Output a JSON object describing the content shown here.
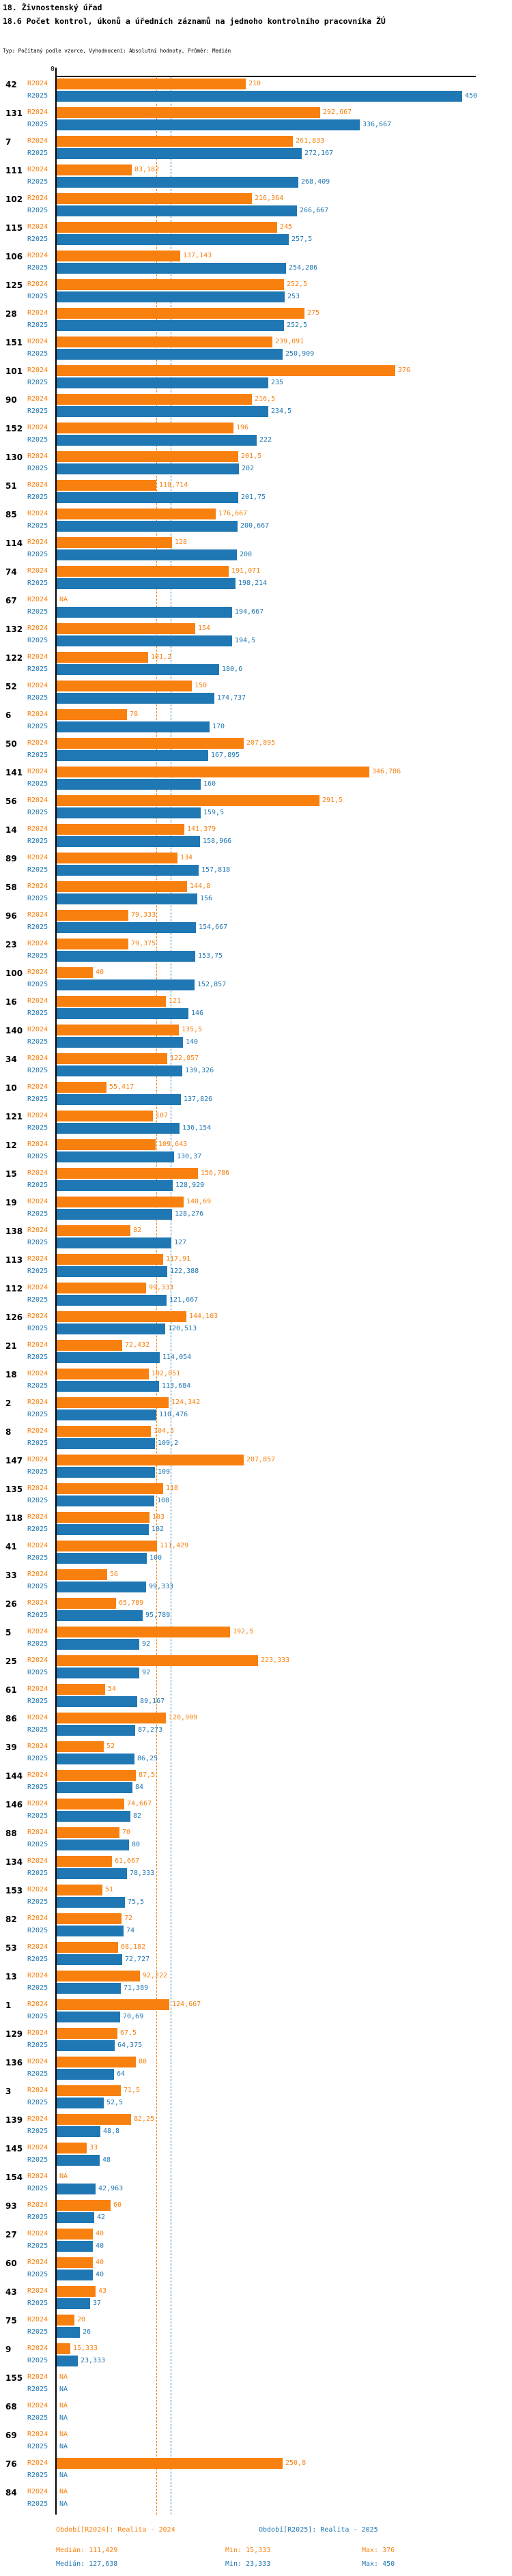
{
  "header": {
    "title": "18. Živnostenský úřad",
    "subtitle": "18.6 Počet kontrol, úkonů a úředních záznamů na jednoho kontrolního pracovníka ŽÚ",
    "meta": "Typ: Počítaný podle vzorce, Vyhodnocení: Absolutní hodnoty, Průměr: Medián"
  },
  "chart_data": {
    "type": "bar",
    "orientation": "horizontal",
    "title": "18.6 Počet kontrol, úkonů a úředních záznamů na jednoho kontrolního pracovníka ŽÚ",
    "series_names": [
      "R2024",
      "R2025"
    ],
    "colors": {
      "r2024": "#f8800f",
      "r2025": "#1f77b4",
      "axis": "#000000"
    },
    "axis": {
      "zero_label": "0",
      "xlim": [
        0,
        466
      ],
      "grid": false
    },
    "na_text": "NA",
    "median_lines": [
      {
        "series": "R2024",
        "value": 111.429
      },
      {
        "series": "R2025",
        "value": 127.638
      }
    ],
    "groups": [
      {
        "label": "42",
        "r2024": "210",
        "r2025": "450"
      },
      {
        "label": "131",
        "r2024": "292,667",
        "r2025": "336,667"
      },
      {
        "label": "7",
        "r2024": "261,833",
        "r2025": "272,167"
      },
      {
        "label": "111",
        "r2024": "83,182",
        "r2025": "268,409"
      },
      {
        "label": "102",
        "r2024": "216,364",
        "r2025": "266,667"
      },
      {
        "label": "115",
        "r2024": "245",
        "r2025": "257,5"
      },
      {
        "label": "106",
        "r2024": "137,143",
        "r2025": "254,286"
      },
      {
        "label": "125",
        "r2024": "252,5",
        "r2025": "253"
      },
      {
        "label": "28",
        "r2024": "275",
        "r2025": "252,5"
      },
      {
        "label": "151",
        "r2024": "239,091",
        "r2025": "250,909"
      },
      {
        "label": "101",
        "r2024": "376",
        "r2025": "235"
      },
      {
        "label": "90",
        "r2024": "216,5",
        "r2025": "234,5"
      },
      {
        "label": "152",
        "r2024": "196",
        "r2025": "222"
      },
      {
        "label": "130",
        "r2024": "201,5",
        "r2025": "202"
      },
      {
        "label": "51",
        "r2024": "110,714",
        "r2025": "201,75"
      },
      {
        "label": "85",
        "r2024": "176,667",
        "r2025": "200,667"
      },
      {
        "label": "114",
        "r2024": "128",
        "r2025": "200"
      },
      {
        "label": "74",
        "r2024": "191,071",
        "r2025": "198,214"
      },
      {
        "label": "67",
        "r2024": "NA",
        "r2025": "194,667"
      },
      {
        "label": "132",
        "r2024": "154",
        "r2025": "194,5"
      },
      {
        "label": "122",
        "r2024": "101,2",
        "r2025": "180,6"
      },
      {
        "label": "52",
        "r2024": "150",
        "r2025": "174,737"
      },
      {
        "label": "6",
        "r2024": "78",
        "r2025": "170"
      },
      {
        "label": "50",
        "r2024": "207,895",
        "r2025": "167,895"
      },
      {
        "label": "141",
        "r2024": "346,786",
        "r2025": "160"
      },
      {
        "label": "56",
        "r2024": "291,5",
        "r2025": "159,5"
      },
      {
        "label": "14",
        "r2024": "141,379",
        "r2025": "158,966"
      },
      {
        "label": "89",
        "r2024": "134",
        "r2025": "157,818"
      },
      {
        "label": "58",
        "r2024": "144,8",
        "r2025": "156"
      },
      {
        "label": "96",
        "r2024": "79,333",
        "r2025": "154,667"
      },
      {
        "label": "23",
        "r2024": "79,375",
        "r2025": "153,75"
      },
      {
        "label": "100",
        "r2024": "40",
        "r2025": "152,857"
      },
      {
        "label": "16",
        "r2024": "121",
        "r2025": "146"
      },
      {
        "label": "140",
        "r2024": "135,5",
        "r2025": "140"
      },
      {
        "label": "34",
        "r2024": "122,857",
        "r2025": "139,326"
      },
      {
        "label": "10",
        "r2024": "55,417",
        "r2025": "137,826"
      },
      {
        "label": "121",
        "r2024": "107",
        "r2025": "136,154"
      },
      {
        "label": "12",
        "r2024": "109,643",
        "r2025": "130,37"
      },
      {
        "label": "15",
        "r2024": "156,786",
        "r2025": "128,929"
      },
      {
        "label": "19",
        "r2024": "140,69",
        "r2025": "128,276"
      },
      {
        "label": "138",
        "r2024": "82",
        "r2025": "127"
      },
      {
        "label": "113",
        "r2024": "117,91",
        "r2025": "122,388"
      },
      {
        "label": "112",
        "r2024": "99,333",
        "r2025": "121,667"
      },
      {
        "label": "126",
        "r2024": "144,103",
        "r2025": "120,513"
      },
      {
        "label": "21",
        "r2024": "72,432",
        "r2025": "114,054"
      },
      {
        "label": "18",
        "r2024": "102,051",
        "r2025": "113,684"
      },
      {
        "label": "2",
        "r2024": "124,342",
        "r2025": "110,476"
      },
      {
        "label": "8",
        "r2024": "104,5",
        "r2025": "109,2"
      },
      {
        "label": "147",
        "r2024": "207,857",
        "r2025": "109"
      },
      {
        "label": "135",
        "r2024": "118",
        "r2025": "108"
      },
      {
        "label": "118",
        "r2024": "103",
        "r2025": "102"
      },
      {
        "label": "41",
        "r2024": "111,429",
        "r2025": "100"
      },
      {
        "label": "33",
        "r2024": "56",
        "r2025": "99,333"
      },
      {
        "label": "26",
        "r2024": "65,789",
        "r2025": "95,789"
      },
      {
        "label": "5",
        "r2024": "192,5",
        "r2025": "92"
      },
      {
        "label": "25",
        "r2024": "223,333",
        "r2025": "92"
      },
      {
        "label": "61",
        "r2024": "54",
        "r2025": "89,167"
      },
      {
        "label": "86",
        "r2024": "120,909",
        "r2025": "87,273"
      },
      {
        "label": "39",
        "r2024": "52",
        "r2025": "86,25"
      },
      {
        "label": "144",
        "r2024": "87,5",
        "r2025": "84"
      },
      {
        "label": "146",
        "r2024": "74,667",
        "r2025": "82"
      },
      {
        "label": "88",
        "r2024": "70",
        "r2025": "80"
      },
      {
        "label": "134",
        "r2024": "61,667",
        "r2025": "78,333"
      },
      {
        "label": "153",
        "r2024": "51",
        "r2025": "75,5"
      },
      {
        "label": "82",
        "r2024": "72",
        "r2025": "74"
      },
      {
        "label": "53",
        "r2024": "68,182",
        "r2025": "72,727"
      },
      {
        "label": "13",
        "r2024": "92,222",
        "r2025": "71,389"
      },
      {
        "label": "1",
        "r2024": "124,667",
        "r2025": "70,69"
      },
      {
        "label": "129",
        "r2024": "67,5",
        "r2025": "64,375"
      },
      {
        "label": "136",
        "r2024": "88",
        "r2025": "64"
      },
      {
        "label": "3",
        "r2024": "71,5",
        "r2025": "52,5"
      },
      {
        "label": "139",
        "r2024": "82,25",
        "r2025": "48,8"
      },
      {
        "label": "145",
        "r2024": "33",
        "r2025": "48"
      },
      {
        "label": "154",
        "r2024": "NA",
        "r2025": "42,963"
      },
      {
        "label": "93",
        "r2024": "60",
        "r2025": "42"
      },
      {
        "label": "27",
        "r2024": "40",
        "r2025": "40"
      },
      {
        "label": "60",
        "r2024": "40",
        "r2025": "40"
      },
      {
        "label": "43",
        "r2024": "43",
        "r2025": "37"
      },
      {
        "label": "75",
        "r2024": "20",
        "r2025": "26"
      },
      {
        "label": "9",
        "r2024": "15,333",
        "r2025": "23,333"
      },
      {
        "label": "155",
        "r2024": "NA",
        "r2025": "NA"
      },
      {
        "label": "68",
        "r2024": "NA",
        "r2025": "NA"
      },
      {
        "label": "69",
        "r2024": "NA",
        "r2025": "NA"
      },
      {
        "label": "76",
        "r2024": "250,8",
        "r2025": "NA"
      },
      {
        "label": "84",
        "r2024": "NA",
        "r2025": "NA"
      }
    ]
  },
  "footer": {
    "period_2024": "Období[R2024]: Realita - 2024",
    "period_2025": "Období[R2025]: Realita - 2025",
    "stats_2024": {
      "median": "Medián: 111,429",
      "min": "Min: 15,333",
      "max": "Max: 376"
    },
    "stats_2025": {
      "median": "Medián: 127,638",
      "min": "Min: 23,333",
      "max": "Max: 450"
    }
  }
}
